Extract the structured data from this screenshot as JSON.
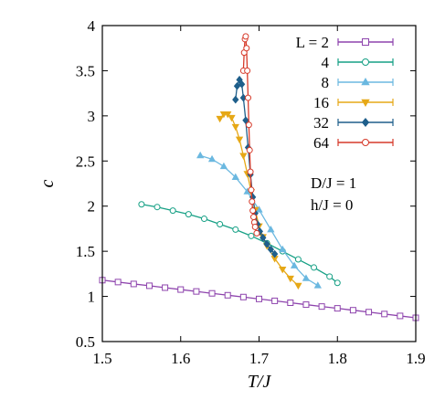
{
  "chart_data": {
    "type": "line",
    "xlabel": "T/J",
    "ylabel": "c",
    "xlim": [
      1.5,
      1.9
    ],
    "ylim": [
      0.5,
      4.0
    ],
    "xticks": [
      "1.5",
      "1.6",
      "1.7",
      "1.8",
      "1.9"
    ],
    "yticks": [
      "0.5",
      "1",
      "1.5",
      "2",
      "2.5",
      "3",
      "3.5",
      "4"
    ],
    "legend_position": "top-right",
    "annotations": [
      "D/J = 1",
      "h/J = 0"
    ],
    "series": [
      {
        "name": "L = 2",
        "color": "#8e44ad",
        "marker": "square",
        "x": [
          1.5,
          1.52,
          1.54,
          1.56,
          1.58,
          1.6,
          1.62,
          1.64,
          1.66,
          1.68,
          1.7,
          1.72,
          1.74,
          1.76,
          1.78,
          1.8,
          1.82,
          1.84,
          1.86,
          1.88,
          1.9
        ],
        "y": [
          1.18,
          1.159,
          1.138,
          1.118,
          1.097,
          1.076,
          1.055,
          1.034,
          1.013,
          0.993,
          0.972,
          0.951,
          0.93,
          0.909,
          0.888,
          0.868,
          0.847,
          0.826,
          0.805,
          0.784,
          0.763
        ]
      },
      {
        "name": "4",
        "color": "#16a085",
        "marker": "circle",
        "x": [
          1.55,
          1.57,
          1.59,
          1.61,
          1.63,
          1.65,
          1.67,
          1.69,
          1.71,
          1.73,
          1.75,
          1.77,
          1.79,
          1.8
        ],
        "y": [
          2.02,
          1.99,
          1.95,
          1.91,
          1.86,
          1.8,
          1.74,
          1.67,
          1.59,
          1.5,
          1.41,
          1.32,
          1.22,
          1.15
        ]
      },
      {
        "name": "8",
        "color": "#6bb8e0",
        "marker": "triangle-up",
        "x": [
          1.625,
          1.64,
          1.655,
          1.67,
          1.685,
          1.7,
          1.715,
          1.73,
          1.745,
          1.76,
          1.775
        ],
        "y": [
          2.56,
          2.52,
          2.44,
          2.32,
          2.16,
          1.96,
          1.74,
          1.52,
          1.34,
          1.2,
          1.12
        ]
      },
      {
        "name": "16",
        "color": "#e6a817",
        "marker": "triangle-down",
        "x": [
          1.65,
          1.655,
          1.66,
          1.665,
          1.67,
          1.675,
          1.68,
          1.685,
          1.69,
          1.695,
          1.7,
          1.705,
          1.71,
          1.72,
          1.73,
          1.74,
          1.75
        ],
        "y": [
          2.97,
          3.02,
          3.02,
          2.98,
          2.88,
          2.74,
          2.56,
          2.36,
          2.16,
          1.96,
          1.78,
          1.66,
          1.56,
          1.42,
          1.3,
          1.2,
          1.12
        ]
      },
      {
        "name": "32",
        "color": "#1f5f8b",
        "marker": "diamond",
        "x": [
          1.67,
          1.672,
          1.675,
          1.678,
          1.68,
          1.683,
          1.686,
          1.689,
          1.692,
          1.695,
          1.698,
          1.701,
          1.705,
          1.71,
          1.715,
          1.72
        ],
        "y": [
          3.18,
          3.33,
          3.4,
          3.35,
          3.2,
          2.95,
          2.65,
          2.35,
          2.1,
          1.92,
          1.8,
          1.72,
          1.65,
          1.58,
          1.52,
          1.47
        ]
      },
      {
        "name": "64",
        "color": "#d63a2a",
        "marker": "circle",
        "x": [
          1.68,
          1.681,
          1.682,
          1.683,
          1.684,
          1.685,
          1.686,
          1.687,
          1.688,
          1.689,
          1.69,
          1.691,
          1.692,
          1.693,
          1.694,
          1.695,
          1.697
        ],
        "y": [
          3.5,
          3.7,
          3.85,
          3.88,
          3.75,
          3.5,
          3.2,
          2.9,
          2.62,
          2.38,
          2.18,
          2.05,
          1.95,
          1.88,
          1.82,
          1.77,
          1.7
        ]
      }
    ]
  }
}
